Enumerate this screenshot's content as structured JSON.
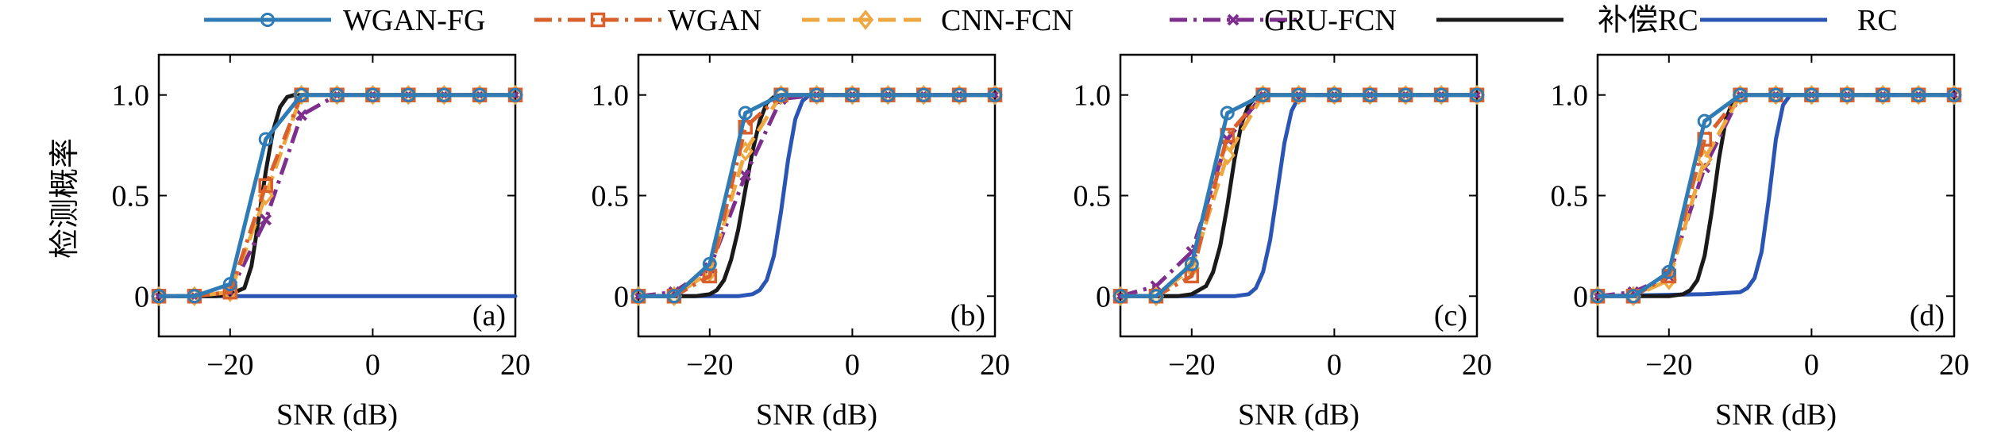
{
  "chart_data": {
    "type": "line",
    "ylabel": "检测概率",
    "xlabel": "SNR (dB)",
    "xlim": [
      -30,
      20
    ],
    "ylim": [
      -0.2,
      1.2
    ],
    "xticks": [
      -20,
      0,
      20
    ],
    "xtick_labels": [
      "−20",
      "0",
      "20"
    ],
    "yticks": [
      0,
      0.5,
      1.0
    ],
    "ytick_labels": [
      "0",
      "0.5",
      "1.0"
    ],
    "legend_position": "top",
    "grid": false,
    "series_styles": [
      {
        "name": "WGAN-FG",
        "color": "#2e7bb6",
        "dash": "solid",
        "marker": "circle"
      },
      {
        "name": "WGAN",
        "color": "#d95f2b",
        "dash": "dashdot",
        "marker": "square"
      },
      {
        "name": "CNN-FCN",
        "color": "#eda842",
        "dash": "dashed",
        "marker": "diamond"
      },
      {
        "name": "GRU-FCN",
        "color": "#7e2f8e",
        "dash": "dashdot",
        "marker": "x"
      },
      {
        "name": "补偿RC",
        "color": "#1a1a1a",
        "dash": "solid",
        "marker": "none"
      },
      {
        "name": "RC",
        "color": "#2a55b4",
        "dash": "solid",
        "marker": "none"
      }
    ],
    "panels": [
      {
        "label": "(a)",
        "x": [
          -30,
          -25,
          -20,
          -15,
          -10,
          -5,
          0,
          5,
          10,
          15,
          20
        ],
        "series": [
          {
            "name": "WGAN-FG",
            "values": [
              0,
              0,
              0.06,
              0.78,
              1,
              1,
              1,
              1,
              1,
              1,
              1
            ]
          },
          {
            "name": "WGAN",
            "values": [
              0,
              0,
              0.02,
              0.55,
              1,
              1,
              1,
              1,
              1,
              1,
              1
            ]
          },
          {
            "name": "CNN-FCN",
            "values": [
              0,
              0,
              0.02,
              0.5,
              1,
              1,
              1,
              1,
              1,
              1,
              1
            ]
          },
          {
            "name": "GRU-FCN",
            "values": [
              0,
              0,
              0.02,
              0.38,
              0.9,
              1,
              1,
              1,
              1,
              1,
              1
            ]
          }
        ],
        "curves": [
          {
            "name": "补偿RC",
            "x": [
              -30,
              -22,
              -20,
              -18,
              -17,
              -16,
              -15,
              -14,
              -13,
              -12,
              -11,
              -10,
              20
            ],
            "values": [
              0,
              0,
              0.01,
              0.04,
              0.15,
              0.38,
              0.62,
              0.82,
              0.94,
              0.99,
              1,
              1,
              1
            ]
          },
          {
            "name": "RC",
            "x": [
              -30,
              20
            ],
            "values": [
              0,
              0
            ]
          }
        ]
      },
      {
        "label": "(b)",
        "x": [
          -30,
          -25,
          -20,
          -15,
          -10,
          -5,
          0,
          5,
          10,
          15,
          20
        ],
        "series": [
          {
            "name": "WGAN-FG",
            "values": [
              0,
              0,
              0.16,
              0.91,
              1,
              1,
              1,
              1,
              1,
              1,
              1
            ]
          },
          {
            "name": "WGAN",
            "values": [
              0,
              0,
              0.1,
              0.84,
              1,
              1,
              1,
              1,
              1,
              1,
              1
            ]
          },
          {
            "name": "CNN-FCN",
            "values": [
              0,
              0,
              0.12,
              0.72,
              1,
              1,
              1,
              1,
              1,
              1,
              1
            ]
          },
          {
            "name": "GRU-FCN",
            "values": [
              0,
              0.02,
              0.14,
              0.6,
              0.98,
              1,
              1,
              1,
              1,
              1,
              1
            ]
          }
        ],
        "curves": [
          {
            "name": "补偿RC",
            "x": [
              -30,
              -22,
              -20,
              -19,
              -18,
              -17,
              -16,
              -15,
              -14,
              -13,
              -12,
              -11,
              -10,
              20
            ],
            "values": [
              0,
              0,
              0.01,
              0.03,
              0.08,
              0.18,
              0.33,
              0.53,
              0.72,
              0.87,
              0.96,
              0.99,
              1,
              1
            ]
          },
          {
            "name": "RC",
            "x": [
              -30,
              -16,
              -14,
              -13,
              -12,
              -11,
              -10,
              -9,
              -8,
              -7,
              -6,
              20
            ],
            "values": [
              0,
              0,
              0.01,
              0.03,
              0.08,
              0.2,
              0.42,
              0.68,
              0.88,
              0.97,
              1,
              1
            ]
          }
        ]
      },
      {
        "label": "(c)",
        "x": [
          -30,
          -25,
          -20,
          -15,
          -10,
          -5,
          0,
          5,
          10,
          15,
          20
        ],
        "series": [
          {
            "name": "WGAN-FG",
            "values": [
              0,
              0,
              0.16,
              0.91,
              1,
              1,
              1,
              1,
              1,
              1,
              1
            ]
          },
          {
            "name": "WGAN",
            "values": [
              0,
              0,
              0.1,
              0.8,
              1,
              1,
              1,
              1,
              1,
              1,
              1
            ]
          },
          {
            "name": "CNN-FCN",
            "values": [
              0,
              0,
              0.14,
              0.7,
              1,
              1,
              1,
              1,
              1,
              1,
              1
            ]
          },
          {
            "name": "GRU-FCN",
            "values": [
              0,
              0.05,
              0.22,
              0.78,
              1,
              1,
              1,
              1,
              1,
              1,
              1
            ]
          }
        ],
        "curves": [
          {
            "name": "补偿RC",
            "x": [
              -30,
              -22,
              -20,
              -18,
              -17,
              -16,
              -15,
              -14,
              -13,
              -12,
              -11,
              -10,
              20
            ],
            "values": [
              0,
              0,
              0.01,
              0.05,
              0.12,
              0.25,
              0.45,
              0.68,
              0.86,
              0.95,
              0.99,
              1,
              1
            ]
          },
          {
            "name": "RC",
            "x": [
              -30,
              -14,
              -12,
              -11,
              -10,
              -9,
              -8,
              -7,
              -6,
              -5,
              -4,
              20
            ],
            "values": [
              0,
              0,
              0.01,
              0.04,
              0.12,
              0.28,
              0.52,
              0.76,
              0.92,
              0.99,
              1,
              1
            ]
          }
        ]
      },
      {
        "label": "(d)",
        "x": [
          -30,
          -25,
          -20,
          -15,
          -10,
          -5,
          0,
          5,
          10,
          15,
          20
        ],
        "series": [
          {
            "name": "WGAN-FG",
            "values": [
              0,
              0,
              0.12,
              0.87,
              1,
              1,
              1,
              1,
              1,
              1,
              1
            ]
          },
          {
            "name": "WGAN",
            "values": [
              0,
              0,
              0.1,
              0.78,
              1,
              1,
              1,
              1,
              1,
              1,
              1
            ]
          },
          {
            "name": "CNN-FCN",
            "values": [
              0,
              0,
              0.08,
              0.68,
              1,
              1,
              1,
              1,
              1,
              1,
              1
            ]
          },
          {
            "name": "GRU-FCN",
            "values": [
              0,
              0.02,
              0.1,
              0.64,
              1,
              1,
              1,
              1,
              1,
              1,
              1
            ]
          }
        ],
        "curves": [
          {
            "name": "补偿RC",
            "x": [
              -30,
              -20,
              -18,
              -17,
              -16,
              -15,
              -14,
              -13,
              -12,
              -11,
              -10,
              20
            ],
            "values": [
              0,
              0,
              0.01,
              0.03,
              0.08,
              0.2,
              0.42,
              0.68,
              0.88,
              0.97,
              1,
              1
            ]
          },
          {
            "name": "RC",
            "x": [
              -30,
              -15,
              -10,
              -9,
              -8,
              -7,
              -6,
              -5,
              -4,
              -3,
              20
            ],
            "values": [
              0,
              0.01,
              0.02,
              0.04,
              0.09,
              0.22,
              0.48,
              0.78,
              0.95,
              1,
              1
            ]
          }
        ]
      }
    ]
  }
}
